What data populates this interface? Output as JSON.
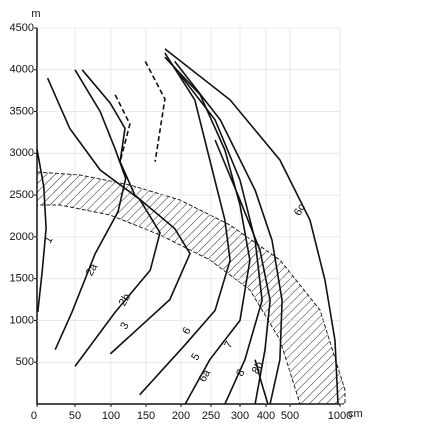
{
  "chart_data": {
    "type": "line",
    "y_label": "m",
    "x_label": "cm",
    "xlim": [
      0,
      1000
    ],
    "ylim": [
      0,
      4500
    ],
    "xticks": [
      0,
      50,
      100,
      150,
      200,
      250,
      300,
      400,
      500,
      1000
    ],
    "yticks": [
      500,
      1000,
      1500,
      2000,
      2500,
      3000,
      3500,
      4000,
      4500
    ],
    "grid": true,
    "color": "#111111",
    "series": [
      {
        "name": "1",
        "x": [
          0,
          9,
          12,
          7,
          1
        ],
        "values": [
          3050,
          2600,
          2100,
          1600,
          1100
        ]
      },
      {
        "name": "2a",
        "x": [
          50,
          85,
          106,
          121,
          110,
          78,
          46,
          24
        ],
        "values": [
          4000,
          3500,
          3050,
          2700,
          2300,
          1800,
          1100,
          650
        ]
      },
      {
        "name": "2b",
        "x": [
          14,
          43,
          85,
          141,
          170,
          156,
          106,
          50
        ],
        "values": [
          3900,
          3300,
          2800,
          2450,
          2050,
          1600,
          1100,
          450
        ]
      },
      {
        "name": "3",
        "x": [
          60,
          99,
          120,
          113,
          134,
          191,
          215,
          184,
          99
        ],
        "values": [
          4000,
          3600,
          3300,
          2900,
          2500,
          2100,
          1800,
          1250,
          600
        ]
      },
      {
        "dash": true,
        "x": [
          106,
          127,
          113
        ],
        "values": [
          3700,
          3350,
          2900
        ]
      },
      {
        "dash": true,
        "x": [
          149,
          177,
          163
        ],
        "values": [
          4100,
          3650,
          2900
        ]
      },
      {
        "name": "6",
        "x": [
          177,
          223,
          248,
          274,
          283,
          257,
          207,
          141
        ],
        "values": [
          4200,
          3640,
          2920,
          2200,
          1720,
          1120,
          710,
          110
        ]
      },
      {
        "name": "5",
        "x": [
          177,
          232,
          274,
          300,
          338,
          300,
          248,
          207
        ],
        "values": [
          4150,
          3700,
          3040,
          2380,
          1720,
          1000,
          530,
          0
        ]
      },
      {
        "name": "6a",
        "x": [
          198,
          257,
          300,
          358,
          385,
          319,
          274
        ],
        "values": [
          3950,
          3400,
          2680,
          1960,
          1240,
          530,
          0
        ]
      },
      {
        "name": "7",
        "x": [
          257,
          300,
          377,
          417,
          396,
          358
        ],
        "values": [
          3160,
          2440,
          1840,
          1240,
          650,
          0
        ]
      },
      {
        "name": "8",
        "x": [
          191,
          266,
          358,
          425,
          467,
          458,
          417
        ],
        "values": [
          4100,
          3400,
          2560,
          1960,
          1240,
          530,
          0
        ]
      },
      {
        "name": "8b",
        "x": [
          358,
          385,
          408
        ],
        "values": [
          530,
          230,
          0
        ]
      },
      {
        "name": "6c",
        "x": [
          177,
          283,
          458,
          700,
          850,
          950,
          980
        ],
        "values": [
          4250,
          3640,
          2920,
          2200,
          1480,
          760,
          0
        ]
      }
    ]
  }
}
